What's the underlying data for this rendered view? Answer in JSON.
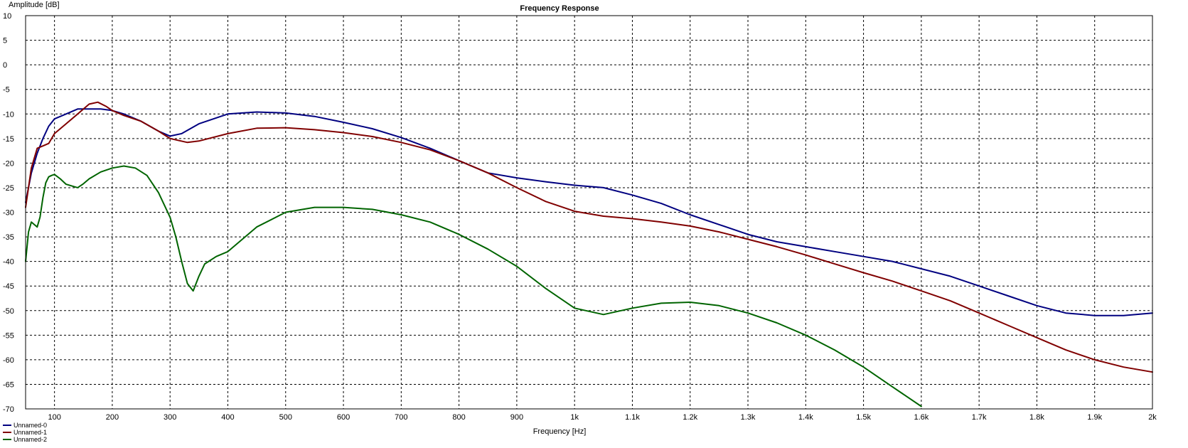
{
  "chart_data": {
    "type": "line",
    "title": "Frequency Response",
    "xlabel": "Frequency [Hz]",
    "ylabel": "Amplitude [dB]",
    "xlim": [
      50,
      2000
    ],
    "ylim": [
      -70,
      10
    ],
    "x_ticks": [
      {
        "value": 100,
        "label": "100"
      },
      {
        "value": 200,
        "label": "200"
      },
      {
        "value": 300,
        "label": "300"
      },
      {
        "value": 400,
        "label": "400"
      },
      {
        "value": 500,
        "label": "500"
      },
      {
        "value": 600,
        "label": "600"
      },
      {
        "value": 700,
        "label": "700"
      },
      {
        "value": 800,
        "label": "800"
      },
      {
        "value": 900,
        "label": "900"
      },
      {
        "value": 1000,
        "label": "1k"
      },
      {
        "value": 1100,
        "label": "1.1k"
      },
      {
        "value": 1200,
        "label": "1.2k"
      },
      {
        "value": 1300,
        "label": "1.3k"
      },
      {
        "value": 1400,
        "label": "1.4k"
      },
      {
        "value": 1500,
        "label": "1.5k"
      },
      {
        "value": 1600,
        "label": "1.6k"
      },
      {
        "value": 1700,
        "label": "1.7k"
      },
      {
        "value": 1800,
        "label": "1.8k"
      },
      {
        "value": 1900,
        "label": "1.9k"
      },
      {
        "value": 2000,
        "label": "2k"
      }
    ],
    "y_ticks": [
      10,
      5,
      0,
      -5,
      -10,
      -15,
      -20,
      -25,
      -30,
      -35,
      -40,
      -45,
      -50,
      -55,
      -60,
      -65,
      -70
    ],
    "grid": true,
    "legend_position": "bottom-left",
    "series": [
      {
        "name": "Unnamed-0",
        "color": "#000080",
        "x": [
          50,
          60,
          70,
          80,
          90,
          100,
          120,
          140,
          160,
          180,
          200,
          220,
          250,
          280,
          300,
          320,
          350,
          400,
          450,
          500,
          550,
          600,
          650,
          700,
          750,
          800,
          850,
          900,
          950,
          1000,
          1050,
          1100,
          1150,
          1200,
          1250,
          1300,
          1350,
          1400,
          1450,
          1500,
          1550,
          1600,
          1650,
          1700,
          1750,
          1800,
          1850,
          1900,
          1950,
          2000
        ],
        "y": [
          -28,
          -22,
          -18,
          -15,
          -12.5,
          -11,
          -10,
          -9,
          -9,
          -9,
          -9.3,
          -10,
          -11.5,
          -13.5,
          -14.5,
          -14,
          -12,
          -10,
          -9.6,
          -9.8,
          -10.5,
          -11.7,
          -13,
          -14.8,
          -17,
          -19.5,
          -22,
          -23,
          -23.8,
          -24.5,
          -25,
          -26.5,
          -28.2,
          -30.5,
          -32.5,
          -34.5,
          -36,
          -37,
          -38,
          -39,
          -40,
          -41.5,
          -43,
          -45,
          -47,
          -49,
          -50.5,
          -51,
          -51,
          -50.5
        ]
      },
      {
        "name": "Unnamed-1",
        "color": "#800000",
        "x": [
          50,
          60,
          70,
          80,
          90,
          100,
          120,
          140,
          160,
          175,
          190,
          200,
          220,
          250,
          280,
          300,
          330,
          350,
          400,
          450,
          500,
          550,
          600,
          650,
          700,
          750,
          800,
          850,
          900,
          950,
          1000,
          1050,
          1100,
          1150,
          1200,
          1250,
          1300,
          1350,
          1400,
          1450,
          1500,
          1550,
          1600,
          1650,
          1700,
          1750,
          1800,
          1850,
          1900,
          1950,
          2000
        ],
        "y": [
          -29,
          -21,
          -17,
          -16.5,
          -16,
          -14,
          -12,
          -10,
          -8,
          -7.6,
          -8.5,
          -9.3,
          -10.3,
          -11.5,
          -13.5,
          -15,
          -15.8,
          -15.5,
          -14,
          -12.9,
          -12.8,
          -13.2,
          -13.8,
          -14.6,
          -15.8,
          -17.3,
          -19.5,
          -22,
          -25,
          -27.8,
          -29.8,
          -30.8,
          -31.3,
          -32,
          -32.8,
          -34,
          -35.5,
          -37,
          -38.7,
          -40.5,
          -42.3,
          -44,
          -46,
          -48,
          -50.5,
          -53,
          -55.5,
          -58,
          -60,
          -61.5,
          -62.5
        ]
      },
      {
        "name": "Unnamed-2",
        "color": "#006400",
        "x": [
          50,
          55,
          60,
          65,
          70,
          75,
          80,
          85,
          90,
          95,
          100,
          110,
          120,
          140,
          150,
          160,
          180,
          200,
          220,
          240,
          260,
          280,
          300,
          310,
          320,
          330,
          340,
          350,
          360,
          380,
          400,
          450,
          500,
          550,
          600,
          650,
          700,
          750,
          800,
          850,
          900,
          950,
          1000,
          1050,
          1100,
          1150,
          1200,
          1250,
          1300,
          1350,
          1400,
          1450,
          1500,
          1550,
          1600
        ],
        "y": [
          -40,
          -34,
          -32,
          -32.5,
          -33,
          -31,
          -27,
          -24,
          -22.8,
          -22.5,
          -22.3,
          -23.2,
          -24.3,
          -25,
          -24.2,
          -23.2,
          -21.8,
          -21,
          -20.6,
          -21,
          -22.5,
          -26,
          -31,
          -35,
          -40,
          -44.5,
          -46,
          -43,
          -40.5,
          -39,
          -38,
          -33,
          -30,
          -29,
          -29,
          -29.4,
          -30.5,
          -32,
          -34.5,
          -37.5,
          -41,
          -45.5,
          -49.5,
          -50.8,
          -49.5,
          -48.5,
          -48.3,
          -49,
          -50.5,
          -52.5,
          -55,
          -58,
          -61.5,
          -65.5,
          -69.5
        ]
      }
    ]
  }
}
